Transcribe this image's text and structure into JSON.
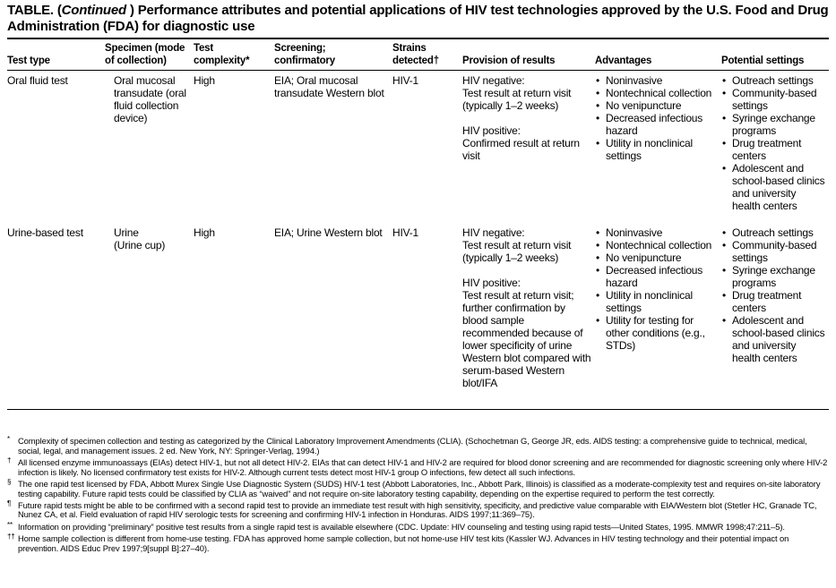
{
  "title": {
    "start": "TABLE. (",
    "italic": "Continued",
    "end": " ) Performance attributes and potential applications of HIV test technologies approved by the U.S. Food and Drug Administration (FDA) for diagnostic use"
  },
  "columns": [
    "Test type",
    "Specimen (mode of collection)",
    "Test complexity*",
    "Screening; confirmatory",
    "Strains detected†",
    "Provision of results",
    "Advantages",
    "Potential settings"
  ],
  "rows": [
    {
      "test_type": "Oral fluid test",
      "specimen": [
        "Oral mucosal transudate (oral fluid collection device)"
      ],
      "complexity": "High",
      "screening": "EIA; Oral mucosal transudate Western blot",
      "strains": "HIV-1",
      "provision": [
        [
          "HIV negative:",
          "Test result at return visit (typically 1–2 weeks)"
        ],
        [
          "HIV positive:",
          "Confirmed result at return visit"
        ]
      ],
      "advantages": [
        "Noninvasive",
        "Nontechnical collection",
        "No venipuncture",
        "Decreased infectious hazard",
        "Utility in nonclinical settings"
      ],
      "settings": [
        "Outreach settings",
        "Community-based settings",
        "Syringe exchange programs",
        "Drug treatment centers",
        "Adolescent and school-based clinics and university health centers"
      ]
    },
    {
      "test_type": "Urine-based test",
      "specimen": [
        "Urine",
        "(Urine cup)"
      ],
      "complexity": "High",
      "screening": "EIA; Urine Western blot",
      "strains": "HIV-1",
      "provision": [
        [
          "HIV negative:",
          "Test result at return visit (typically 1–2 weeks)"
        ],
        [
          "HIV positive:",
          "Test result at return visit; further confirma­tion by blood sample recommended because of lower specificity of urine Western blot compared with serum-based Western blot/IFA"
        ]
      ],
      "advantages": [
        "Noninvasive",
        "Nontechnical collection",
        "No venipuncture",
        "Decreased infectious hazard",
        "Utility in nonclinical settings",
        "Utility for testing for other conditions (e.g., STDs)"
      ],
      "settings": [
        "Outreach settings",
        "Community-based settings",
        "Syringe exchange programs",
        "Drug treatment centers",
        "Adolescent and school-based clinics and university health centers"
      ]
    }
  ],
  "footnotes": [
    {
      "mark": "*",
      "text": "Complexity of specimen collection and testing as categorized by the Clinical Laboratory Improvement Amendments (CLIA). (Schochetman G, George JR, eds. AIDS testing: a comprehensive guide to technical, medical, social, legal, and management issues. 2 ed. New York, NY: Springer-Verlag, 1994.)"
    },
    {
      "mark": "†",
      "text": "All licensed enzyme immunoassays (EIAs) detect HIV-1, but not all detect HIV-2. EIAs that can detect HIV-1 and HIV-2 are required for blood donor screening and are recommended for diagnostic screening only where HIV-2 infection is likely. No licensed confirmatory test exists for HIV-2. Although current tests detect most HIV-1 group O infections, few detect all such infections."
    },
    {
      "mark": "§",
      "text": "The one rapid test licensed by FDA, Abbott Murex Single Use Diagnostic System (SUDS) HIV-1 test (Abbott Laboratories, Inc., Abbott Park, Illinois) is classified as a moderate-complexity test and requires on-site laboratory testing capability. Future rapid tests could be classified by CLIA as “waived” and not require on-site laboratory testing capability, depending on the expertise required to perform the test correctly."
    },
    {
      "mark": "¶",
      "text": "Future rapid tests might be able to be confirmed with a second rapid test to provide an immediate test result with high sensitivity, specificity, and predictive value comparable with EIA/Western blot (Stetler HC, Granade TC, Nunez CA, et al. Field evaluation of rapid HIV serologic tests for screening and confirming HIV-1 infection in Honduras. AIDS 1997;11:369–75)."
    },
    {
      "mark": "**",
      "text": "Information on providing “preliminary” positive test results from a single rapid test is available elsewhere (CDC. Update: HIV counseling and testing using rapid tests—United States, 1995. MMWR 1998;47:211–5)."
    },
    {
      "mark": "††",
      "text": "Home sample collection is different from home-use testing. FDA has approved home sample collection, but not home-use HIV test kits (Kassler WJ. Advances in HIV testing technology and their potential impact on prevention. AIDS Educ Prev 1997;9[suppl B]:27–40)."
    }
  ]
}
